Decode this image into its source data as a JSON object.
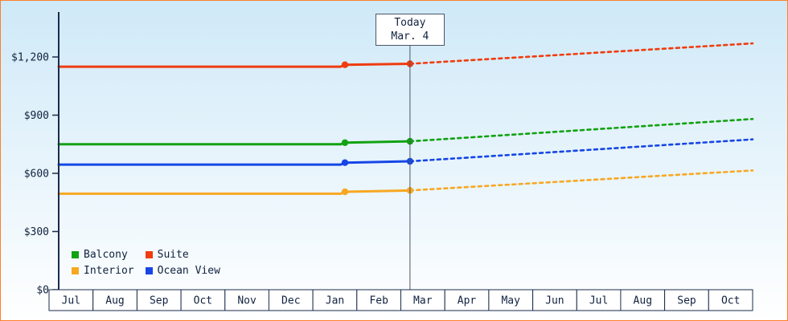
{
  "colors": {
    "bg_top": "#cfe9f8",
    "bg_bottom": "#ffffff",
    "frame_border": "#ff7f2a",
    "axis": "#1b2b4d",
    "text": "#10213f",
    "today_line": "#4a5568",
    "month_cell_bg": "#ffffff"
  },
  "chart_data": {
    "type": "line",
    "x_axis": {
      "labels": [
        "Jul",
        "Aug",
        "Sep",
        "Oct",
        "Nov",
        "Dec",
        "Jan",
        "Feb",
        "Mar",
        "Apr",
        "May",
        "Jun",
        "Jul",
        "Aug",
        "Sep",
        "Oct"
      ]
    },
    "y_axis": {
      "range": [
        0,
        1430
      ],
      "ticks": [
        {
          "value": 0,
          "label": "$0"
        },
        {
          "value": 300,
          "label": "$300"
        },
        {
          "value": 600,
          "label": "$600"
        },
        {
          "value": 900,
          "label": "$900"
        },
        {
          "value": 1200,
          "label": "$1,200"
        }
      ]
    },
    "today": {
      "title": "Today",
      "date": "Mar. 4",
      "x_month": 8.1
    },
    "series": [
      {
        "name": "Balcony",
        "color": "#12a212",
        "solid": [
          [
            0,
            750
          ],
          [
            6.5,
            750
          ],
          [
            6.6,
            758
          ],
          [
            8.1,
            765
          ]
        ],
        "dotted": [
          [
            8.1,
            765
          ],
          [
            16,
            880
          ]
        ],
        "markers": [
          [
            6.6,
            758
          ],
          [
            8.1,
            765
          ]
        ]
      },
      {
        "name": "Suite",
        "color": "#f03c0f",
        "solid": [
          [
            0,
            1150
          ],
          [
            6.5,
            1150
          ],
          [
            6.6,
            1160
          ],
          [
            8.1,
            1165
          ]
        ],
        "dotted": [
          [
            8.1,
            1165
          ],
          [
            16,
            1270
          ]
        ],
        "markers": [
          [
            6.6,
            1160
          ],
          [
            8.1,
            1165
          ]
        ]
      },
      {
        "name": "Interior",
        "color": "#f7a823",
        "solid": [
          [
            0,
            495
          ],
          [
            6.5,
            495
          ],
          [
            6.6,
            505
          ],
          [
            8.1,
            512
          ]
        ],
        "dotted": [
          [
            8.1,
            512
          ],
          [
            16,
            615
          ]
        ],
        "markers": [
          [
            6.6,
            505
          ],
          [
            8.1,
            512
          ]
        ]
      },
      {
        "name": "Ocean View",
        "color": "#1646e6",
        "solid": [
          [
            0,
            645
          ],
          [
            6.5,
            645
          ],
          [
            6.6,
            655
          ],
          [
            8.1,
            662
          ]
        ],
        "dotted": [
          [
            8.1,
            662
          ],
          [
            16,
            775
          ]
        ],
        "markers": [
          [
            6.6,
            655
          ],
          [
            8.1,
            662
          ]
        ]
      }
    ],
    "legend": {
      "position": "bottom-left",
      "rows": [
        [
          "Balcony",
          "Suite"
        ],
        [
          "Interior",
          "Ocean View"
        ]
      ]
    }
  }
}
